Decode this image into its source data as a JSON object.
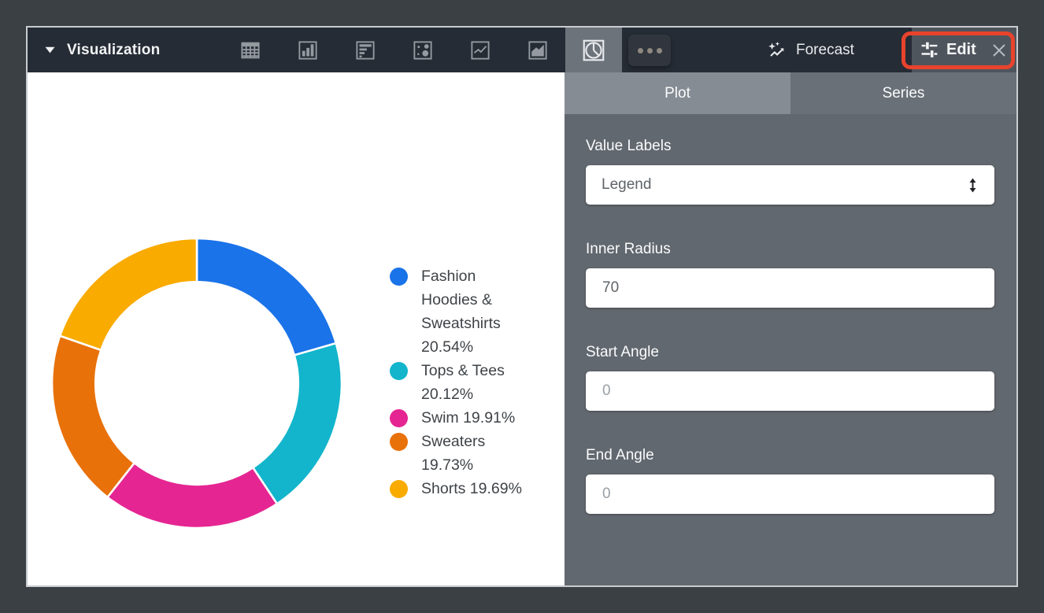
{
  "toolbar": {
    "title": "Visualization",
    "chart_type_buttons": [
      "table",
      "column",
      "bar",
      "scatter",
      "line",
      "area",
      "pie"
    ],
    "active_chart_type": "pie",
    "more_button": "ellipsis",
    "forecast_label": "Forecast",
    "edit_label": "Edit"
  },
  "panel": {
    "tabs": {
      "plot": "Plot",
      "series": "Series",
      "active_tab": "Plot"
    },
    "value_labels": {
      "label": "Value Labels",
      "value": "Legend"
    },
    "inner_radius": {
      "label": "Inner Radius",
      "value": "70"
    },
    "start_angle": {
      "label": "Start Angle",
      "value": "",
      "placeholder": "0"
    },
    "end_angle": {
      "label": "End Angle",
      "value": "",
      "placeholder": "0"
    }
  },
  "chart_data": {
    "type": "pie",
    "title": "",
    "categories": [
      "Fashion Hoodies & Sweatshirts",
      "Tops & Tees",
      "Swim",
      "Sweaters",
      "Shorts"
    ],
    "values": [
      20.54,
      20.12,
      19.91,
      19.73,
      19.69
    ],
    "unit": "%",
    "colors": [
      "#1A73E8",
      "#12B5CB",
      "#E52592",
      "#E8710A",
      "#F9AB00"
    ],
    "inner_radius_pct": 70,
    "start_angle_deg": 0,
    "legend_position": "right",
    "legend_labels": [
      "Fashion Hoodies & Sweatshirts 20.54%",
      "Tops & Tees 20.12%",
      "Swim 19.91%",
      "Sweaters 19.73%",
      "Shorts 19.69%"
    ]
  },
  "colors": {
    "annotation_red": "#E8432C",
    "toolbar_bg": "#262C35",
    "panel_bg": "#62686F",
    "tab_active_bg": "#868C93",
    "tab_inactive_bg": "#6A7077",
    "outer_frame": "#3B4045"
  }
}
